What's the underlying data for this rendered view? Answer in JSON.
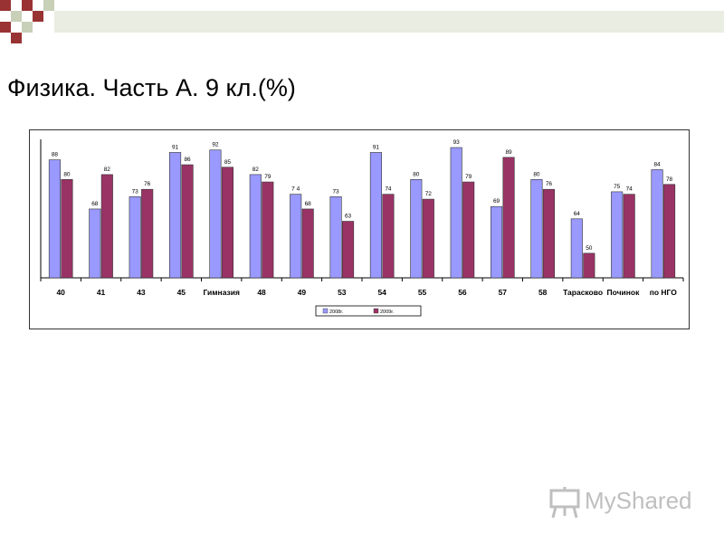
{
  "slide": {
    "title": "Физика. Часть А. 9 кл.(%)"
  },
  "watermark": {
    "text": "MyShared"
  },
  "colors": {
    "series_2008": "#9999ff",
    "series_2009": "#993366",
    "deco_dark": "#993333",
    "deco_light": "#c8d0b8"
  },
  "chart_data": {
    "type": "bar",
    "categories": [
      "40",
      "41",
      "43",
      "45",
      "Гимназия",
      "48",
      "49",
      "53",
      "54",
      "55",
      "56",
      "57",
      "58",
      "Тарасково",
      "Починок",
      "по НГО"
    ],
    "series": [
      {
        "name": "2008г.",
        "values": [
          88,
          68,
          73,
          91,
          92,
          82,
          74,
          73,
          91,
          80,
          93,
          69,
          80,
          64,
          75,
          84
        ],
        "labels": [
          "88",
          "68",
          "73",
          "91",
          "92",
          "82",
          "7 4",
          "73",
          "91",
          "80",
          "93",
          "69",
          "80",
          "64",
          "75",
          "84"
        ]
      },
      {
        "name": "2009г.",
        "values": [
          80,
          82,
          76,
          86,
          85,
          79,
          68,
          63,
          74,
          72,
          79,
          89,
          76,
          50,
          74,
          78
        ],
        "labels": [
          "80",
          "82",
          "76",
          "86",
          "85",
          "79",
          "68",
          "63",
          "74",
          "72",
          "79",
          "89",
          "76",
          "50",
          "74",
          "78"
        ]
      }
    ],
    "ylim": [
      40,
      100
    ],
    "legend_position": "bottom",
    "grid": false
  }
}
